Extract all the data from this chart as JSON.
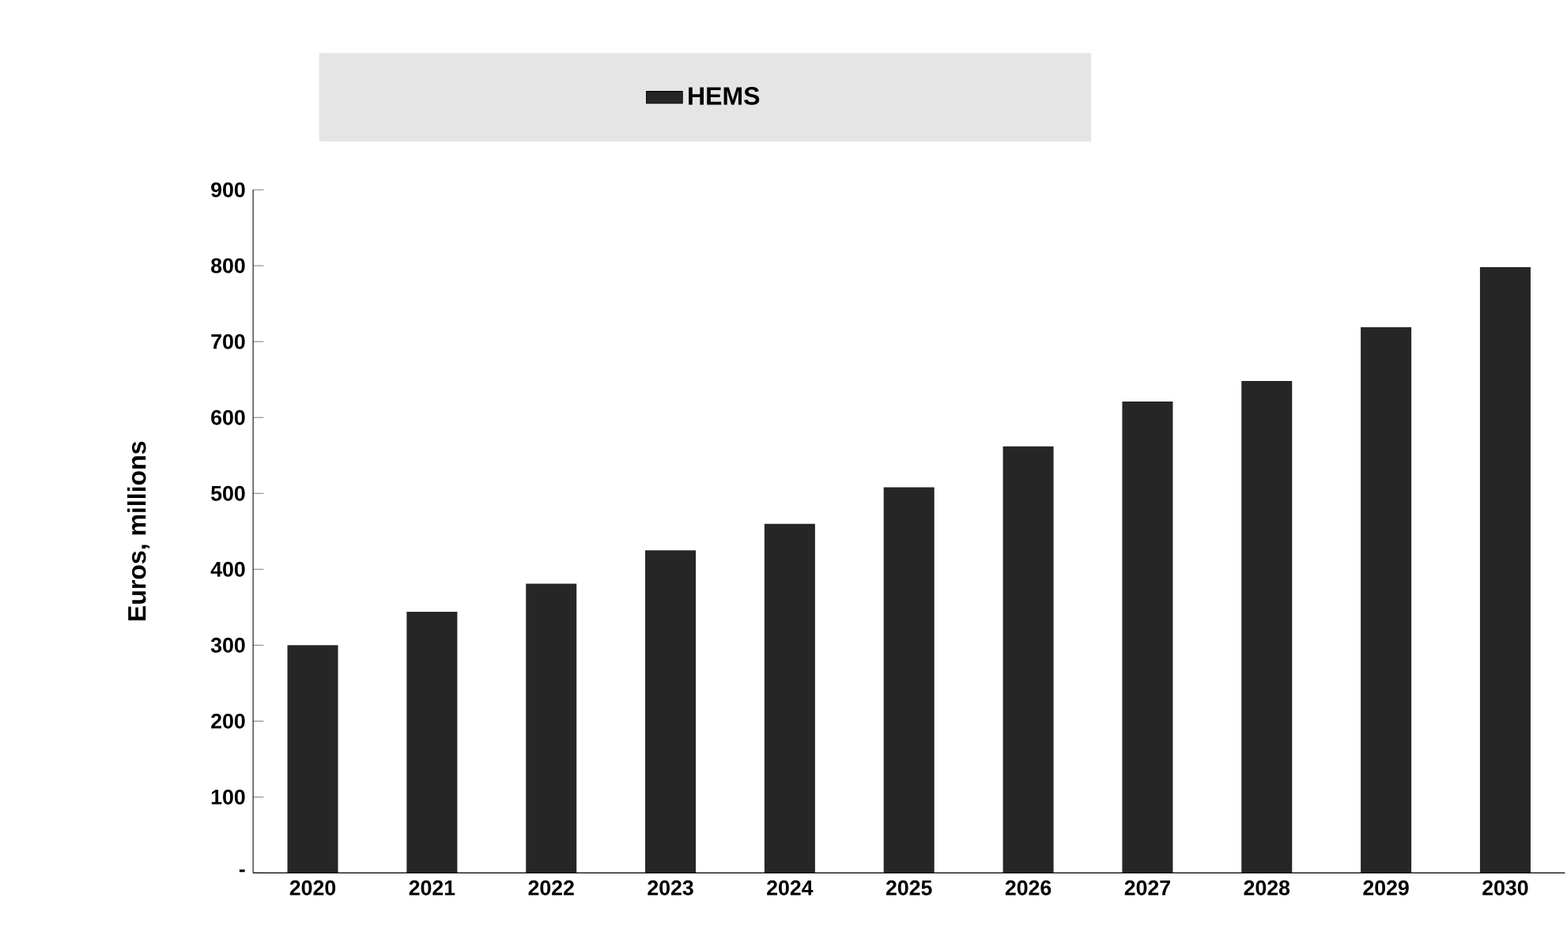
{
  "chart_data": {
    "type": "bar",
    "ylabel": "Euros, millions",
    "categories": [
      "2020",
      "2021",
      "2022",
      "2023",
      "2024",
      "2025",
      "2026",
      "2027",
      "2028",
      "2029",
      "2030"
    ],
    "series": [
      {
        "name": "HEMS",
        "color": "#262626",
        "values": [
          300,
          344,
          381,
          425,
          460,
          508,
          562,
          621,
          648,
          719,
          798
        ]
      }
    ],
    "ylim": [
      0,
      900
    ],
    "yticks": [
      {
        "value": 0,
        "label": "-"
      },
      100,
      200,
      300,
      400,
      500,
      600,
      700,
      800,
      900
    ],
    "grid": false,
    "legend": "top"
  }
}
